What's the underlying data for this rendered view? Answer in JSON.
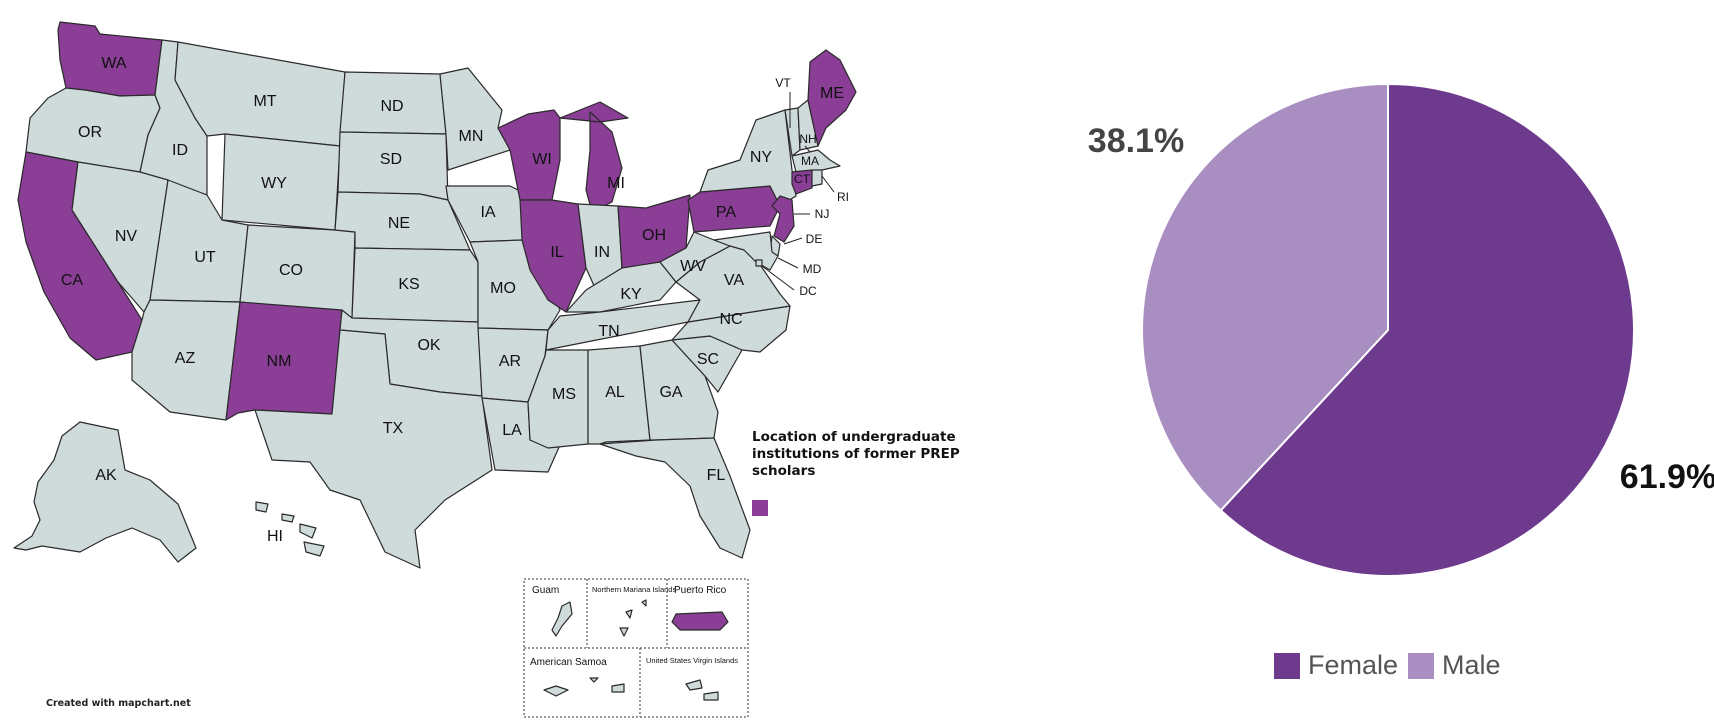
{
  "map": {
    "legend_title": "Location of undergraduate institutions of former PREP scholars",
    "legend_color": "#8a3e96",
    "highlight_color": "#8a3e96",
    "base_color": "#cfdadb",
    "credit": "Created with mapchart.net",
    "highlighted_states": [
      "WA",
      "CA",
      "NM",
      "WI",
      "IL",
      "MI",
      "OH",
      "PA",
      "NJ",
      "CT",
      "ME"
    ],
    "labels": {
      "WA": "WA",
      "OR": "OR",
      "CA": "CA",
      "ID": "ID",
      "NV": "NV",
      "MT": "MT",
      "WY": "WY",
      "UT": "UT",
      "AZ": "AZ",
      "CO": "CO",
      "NM": "NM",
      "ND": "ND",
      "SD": "SD",
      "NE": "NE",
      "KS": "KS",
      "OK": "OK",
      "TX": "TX",
      "MN": "MN",
      "IA": "IA",
      "MO": "MO",
      "AR": "AR",
      "LA": "LA",
      "WI": "WI",
      "IL": "IL",
      "MI": "MI",
      "IN": "IN",
      "OH": "OH",
      "KY": "KY",
      "TN": "TN",
      "MS": "MS",
      "AL": "AL",
      "GA": "GA",
      "FL": "FL",
      "SC": "SC",
      "NC": "NC",
      "VA": "VA",
      "WV": "WV",
      "PA": "PA",
      "NY": "NY",
      "VT": "VT",
      "NH": "NH",
      "ME": "ME",
      "MA": "MA",
      "CT": "CT",
      "RI": "RI",
      "NJ": "NJ",
      "DE": "DE",
      "MD": "MD",
      "DC": "DC",
      "AK": "AK",
      "HI": "HI"
    },
    "territories": {
      "guam": "Guam",
      "northern_mariana": "Northern Mariana Islands",
      "puerto_rico": "Puerto Rico",
      "american_samoa": "American Samoa",
      "usvi": "United States Virgin Islands"
    }
  },
  "chart_data": {
    "type": "pie",
    "series": [
      {
        "name": "Female",
        "value": 61.9,
        "label": "61.9%",
        "color": "#6e3a8e",
        "label_color": "#111111"
      },
      {
        "name": "Male",
        "value": 38.1,
        "label": "38.1%",
        "color": "#a98ec2",
        "label_color": "#444444"
      }
    ],
    "legend": [
      "Female",
      "Male"
    ],
    "legend_placement": "bottom"
  }
}
